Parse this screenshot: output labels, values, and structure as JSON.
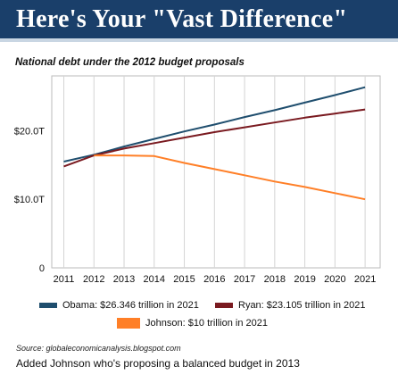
{
  "header": {
    "title": "Here's Your \"Vast Difference\""
  },
  "subtitle": "National debt under the 2012 budget proposals",
  "chart_data": {
    "type": "line",
    "title": "National debt under the 2012 budget proposals",
    "xlabel": "",
    "ylabel": "",
    "x": [
      2011,
      2012,
      2013,
      2014,
      2015,
      2016,
      2017,
      2018,
      2019,
      2020,
      2021
    ],
    "y_ticks": [
      {
        "value": 0,
        "label": "0"
      },
      {
        "value": 10,
        "label": "$10.0T"
      },
      {
        "value": 20,
        "label": "$20.0T"
      }
    ],
    "ylim": [
      0,
      28
    ],
    "xlim": [
      2010.6,
      2021.5
    ],
    "grid": "vertical",
    "series": [
      {
        "name": "Obama: $26.346 trillion in 2021",
        "color": "#1f4e6e",
        "values": [
          15.5,
          16.5,
          17.7,
          18.8,
          19.9,
          20.9,
          22.0,
          23.0,
          24.1,
          25.2,
          26.346
        ]
      },
      {
        "name": "Ryan: $23.105 trillion in 2021",
        "color": "#7a1a20",
        "values": [
          14.8,
          16.4,
          17.4,
          18.2,
          19.0,
          19.8,
          20.5,
          21.2,
          21.9,
          22.5,
          23.105
        ]
      },
      {
        "name": "Johnson: $10 trillion in 2021",
        "color": "#ff7f27",
        "values": [
          null,
          16.4,
          16.4,
          16.3,
          15.3,
          14.4,
          13.5,
          12.6,
          11.8,
          10.9,
          10.0
        ]
      }
    ]
  },
  "source": "Source: globaleconomicanalysis.blogspot.com",
  "caption": "Added Johnson who's proposing a balanced budget in 2013"
}
